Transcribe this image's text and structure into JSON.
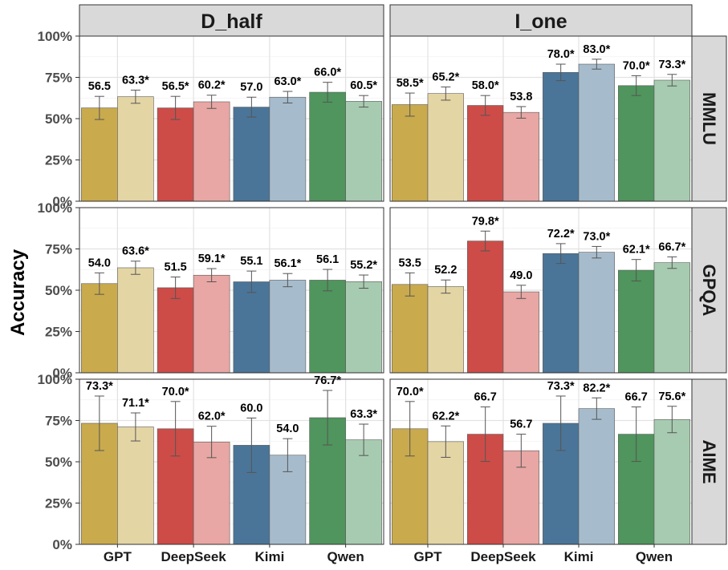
{
  "chart_data": {
    "type": "bar",
    "ylabel": "Accuracy",
    "ylim": [
      0,
      100
    ],
    "yticks": [
      "0%",
      "25%",
      "50%",
      "75%",
      "100%"
    ],
    "columns": [
      "D_half",
      "I_one"
    ],
    "rows": [
      "MMLU",
      "GPQA",
      "AIME"
    ],
    "categories": [
      "GPT",
      "DeepSeek",
      "Kimi",
      "Qwen"
    ],
    "colors": {
      "GPT": [
        "#c9aa4d",
        "#e4d5a5"
      ],
      "DeepSeek": [
        "#cd4c48",
        "#e8a7a4"
      ],
      "Kimi": [
        "#4a7598",
        "#a6bccd"
      ],
      "Qwen": [
        "#4f955d",
        "#a7cbb0"
      ]
    },
    "grid": true,
    "panels": [
      {
        "column": "D_half",
        "row": "MMLU",
        "values": [
          [
            56.5,
            63.3
          ],
          [
            56.5,
            60.2
          ],
          [
            57.0,
            63.0
          ],
          [
            66.0,
            60.5
          ]
        ],
        "errors": [
          [
            7,
            4
          ],
          [
            7,
            4
          ],
          [
            6,
            3.5
          ],
          [
            6,
            3.5
          ]
        ],
        "labels": [
          [
            "56.5",
            "63.3*"
          ],
          [
            "56.5*",
            "60.2*"
          ],
          [
            "57.0",
            "63.0*"
          ],
          [
            "66.0*",
            "60.5*"
          ]
        ]
      },
      {
        "column": "I_one",
        "row": "MMLU",
        "values": [
          [
            58.5,
            65.2
          ],
          [
            58.0,
            53.8
          ],
          [
            78.0,
            83.0
          ],
          [
            70.0,
            73.3
          ]
        ],
        "errors": [
          [
            7,
            4
          ],
          [
            6,
            3.5
          ],
          [
            5,
            3
          ],
          [
            6,
            3.5
          ]
        ],
        "labels": [
          [
            "58.5*",
            "65.2*"
          ],
          [
            "58.0*",
            "53.8"
          ],
          [
            "78.0*",
            "83.0*"
          ],
          [
            "70.0*",
            "73.3*"
          ]
        ]
      },
      {
        "column": "D_half",
        "row": "GPQA",
        "values": [
          [
            54.0,
            63.6
          ],
          [
            51.5,
            59.1
          ],
          [
            55.1,
            56.1
          ],
          [
            56.1,
            55.2
          ]
        ],
        "errors": [
          [
            6.5,
            4
          ],
          [
            6.5,
            4
          ],
          [
            6.5,
            4
          ],
          [
            6.5,
            4
          ]
        ],
        "labels": [
          [
            "54.0",
            "63.6*"
          ],
          [
            "51.5",
            "59.1*"
          ],
          [
            "55.1",
            "56.1*"
          ],
          [
            "56.1",
            "55.2*"
          ]
        ]
      },
      {
        "column": "I_one",
        "row": "GPQA",
        "values": [
          [
            53.5,
            52.2
          ],
          [
            79.8,
            49.0
          ],
          [
            72.2,
            73.0
          ],
          [
            62.1,
            66.7
          ]
        ],
        "errors": [
          [
            7,
            4
          ],
          [
            6,
            4
          ],
          [
            6,
            3.5
          ],
          [
            6.5,
            3.5
          ]
        ],
        "labels": [
          [
            "53.5",
            "52.2"
          ],
          [
            "79.8*",
            "49.0"
          ],
          [
            "72.2*",
            "73.0*"
          ],
          [
            "62.1*",
            "66.7*"
          ]
        ]
      },
      {
        "column": "D_half",
        "row": "AIME",
        "values": [
          [
            73.3,
            71.1
          ],
          [
            70.0,
            62.0
          ],
          [
            60.0,
            54.0
          ],
          [
            76.7,
            63.3
          ]
        ],
        "errors": [
          [
            16.5,
            8.5
          ],
          [
            16.5,
            9.5
          ],
          [
            16.5,
            10
          ],
          [
            16.5,
            9.5
          ]
        ],
        "labels": [
          [
            "73.3*",
            "71.1*"
          ],
          [
            "70.0*",
            "62.0*"
          ],
          [
            "60.0",
            "54.0"
          ],
          [
            "76.7*",
            "63.3*"
          ]
        ]
      },
      {
        "column": "I_one",
        "row": "AIME",
        "values": [
          [
            70.0,
            62.2
          ],
          [
            66.7,
            56.7
          ],
          [
            73.3,
            82.2
          ],
          [
            66.7,
            75.6
          ]
        ],
        "errors": [
          [
            16.5,
            9.5
          ],
          [
            16.5,
            10
          ],
          [
            16.5,
            6.5
          ],
          [
            16.5,
            8
          ]
        ],
        "labels": [
          [
            "70.0*",
            "62.2*"
          ],
          [
            "66.7",
            "56.7"
          ],
          [
            "73.3*",
            "82.2*"
          ],
          [
            "66.7",
            "75.6*"
          ]
        ]
      }
    ]
  }
}
